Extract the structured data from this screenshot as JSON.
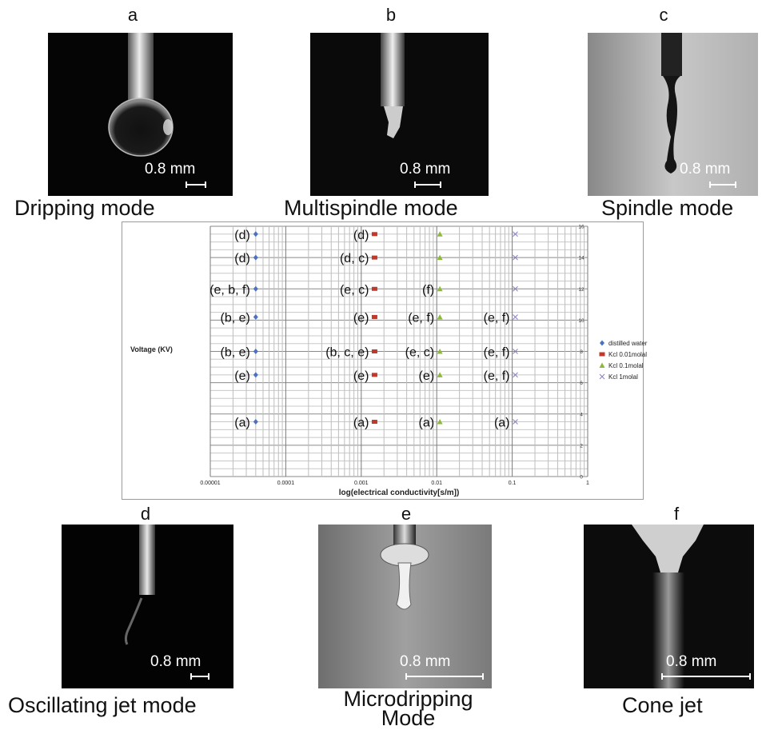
{
  "panels": [
    {
      "letter": "a",
      "caption": "Dripping mode",
      "scale": "0.8 mm"
    },
    {
      "letter": "b",
      "caption": "Multispindle mode",
      "scale": "0.8 mm"
    },
    {
      "letter": "c",
      "caption": "Spindle mode",
      "scale": "0.8 mm"
    },
    {
      "letter": "d",
      "caption": "Oscillating jet mode",
      "scale": "0.8 mm"
    },
    {
      "letter": "e",
      "caption": "Microdripping Mode",
      "scale": "0.8 mm"
    },
    {
      "letter": "f",
      "caption": "Cone jet",
      "scale": "0.8 mm"
    }
  ],
  "chart_data": {
    "type": "scatter",
    "title": "",
    "xlabel": "log(electrical conductivity[s/m])",
    "ylabel": "Voltage (KV)",
    "xscale": "log",
    "xlim": [
      1e-05,
      1
    ],
    "ylim": [
      0,
      16
    ],
    "x_ticks": [
      "0.00001",
      "0.0001",
      "0.001",
      "0.01",
      "0.1",
      "1"
    ],
    "y_ticks": [
      "0",
      "2",
      "4",
      "6",
      "8",
      "10",
      "12",
      "14",
      "16"
    ],
    "grid": true,
    "legend_position": "right",
    "series": [
      {
        "name": "distilled water",
        "color": "#4a72c4",
        "marker": "diamond",
        "x": 4e-05,
        "points": [
          {
            "y": 3.5,
            "label": "(a)"
          },
          {
            "y": 6.5,
            "label": "(e)"
          },
          {
            "y": 8.0,
            "label": "(b, e)"
          },
          {
            "y": 10.2,
            "label": "(b, e)"
          },
          {
            "y": 12.0,
            "label": "(e, b, f)"
          },
          {
            "y": 14.0,
            "label": "(d)"
          },
          {
            "y": 15.5,
            "label": "(d)"
          }
        ]
      },
      {
        "name": "Kcl 0.01molal",
        "color": "#c0392b",
        "marker": "square",
        "x": 0.0015,
        "points": [
          {
            "y": 3.5,
            "label": "(a)"
          },
          {
            "y": 6.5,
            "label": "(e)"
          },
          {
            "y": 8.0,
            "label": "(b, c, e)"
          },
          {
            "y": 10.2,
            "label": "(e)"
          },
          {
            "y": 12.0,
            "label": "(e, c)"
          },
          {
            "y": 14.0,
            "label": "(d, c)"
          },
          {
            "y": 15.5,
            "label": "(d)"
          }
        ]
      },
      {
        "name": "Kcl 0.1molal",
        "color": "#8db83a",
        "marker": "triangle",
        "x": 0.011,
        "points": [
          {
            "y": 3.5,
            "label": "(a)"
          },
          {
            "y": 6.5,
            "label": "(e)"
          },
          {
            "y": 8.0,
            "label": "(e, c)"
          },
          {
            "y": 10.2,
            "label": "(e, f)"
          },
          {
            "y": 12.0,
            "label": "(f)"
          },
          {
            "y": 14.0,
            "label": ""
          },
          {
            "y": 15.5,
            "label": ""
          }
        ]
      },
      {
        "name": "Kcl 1molal",
        "color": "#8a7fc0",
        "marker": "x",
        "x": 0.11,
        "points": [
          {
            "y": 3.5,
            "label": "(a)"
          },
          {
            "y": 6.5,
            "label": "(e, f)"
          },
          {
            "y": 8.0,
            "label": "(e, f)"
          },
          {
            "y": 10.2,
            "label": "(e, f)"
          },
          {
            "y": 12.0,
            "label": ""
          },
          {
            "y": 14.0,
            "label": ""
          },
          {
            "y": 15.5,
            "label": ""
          }
        ]
      }
    ]
  }
}
